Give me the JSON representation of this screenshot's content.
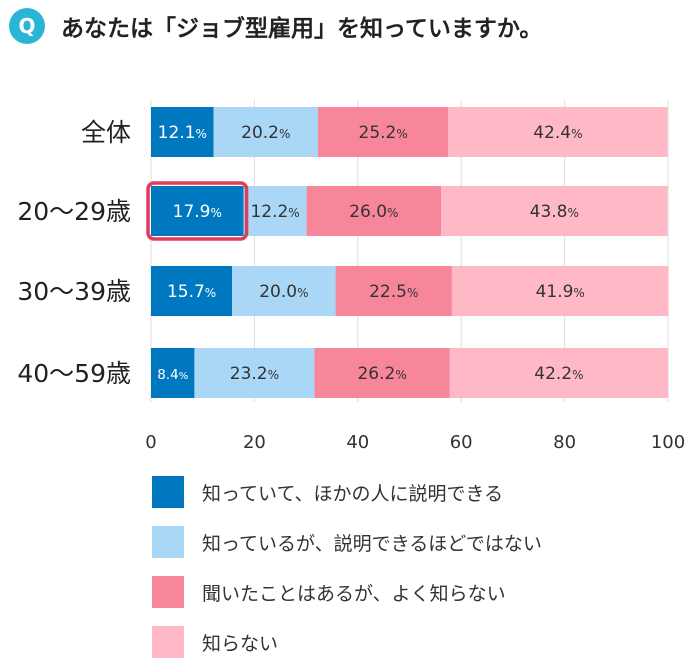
{
  "badge": "Q",
  "title": "あなたは「ジョブ型雇用」を知っていますか。",
  "colors": {
    "know_can_explain": "#0078c0",
    "know_cannot_explain": "#a9d7f5",
    "heard": "#f8869b",
    "dont_know": "#ffb8c6",
    "highlight": "#e03c5e",
    "grid": "#dddddd",
    "badge": "#29b6d6"
  },
  "chart_data": {
    "type": "bar",
    "orientation": "horizontal",
    "stacked": true,
    "categories": [
      "全体",
      "20〜29歳",
      "30〜39歳",
      "40〜59歳"
    ],
    "series": [
      {
        "name": "知っていて、ほかの人に説明できる",
        "values": [
          12.1,
          17.9,
          15.7,
          8.4
        ],
        "color": "#0078c0"
      },
      {
        "name": "知っているが、説明できるほどではない",
        "values": [
          20.2,
          12.2,
          20.0,
          23.2
        ],
        "color": "#a9d7f5"
      },
      {
        "name": "聞いたことはあるが、よく知らない",
        "values": [
          25.2,
          26.0,
          22.5,
          26.2
        ],
        "color": "#f8869b"
      },
      {
        "name": "知らない",
        "values": [
          42.4,
          43.8,
          41.9,
          42.2
        ],
        "color": "#ffb8c6"
      }
    ],
    "unit": "%",
    "xlim": [
      0,
      100
    ],
    "xticks": [
      0,
      20,
      40,
      60,
      80,
      100
    ],
    "highlight": {
      "category": "20〜29歳",
      "series": "知っていて、ほかの人に説明できる"
    },
    "grid": true
  }
}
